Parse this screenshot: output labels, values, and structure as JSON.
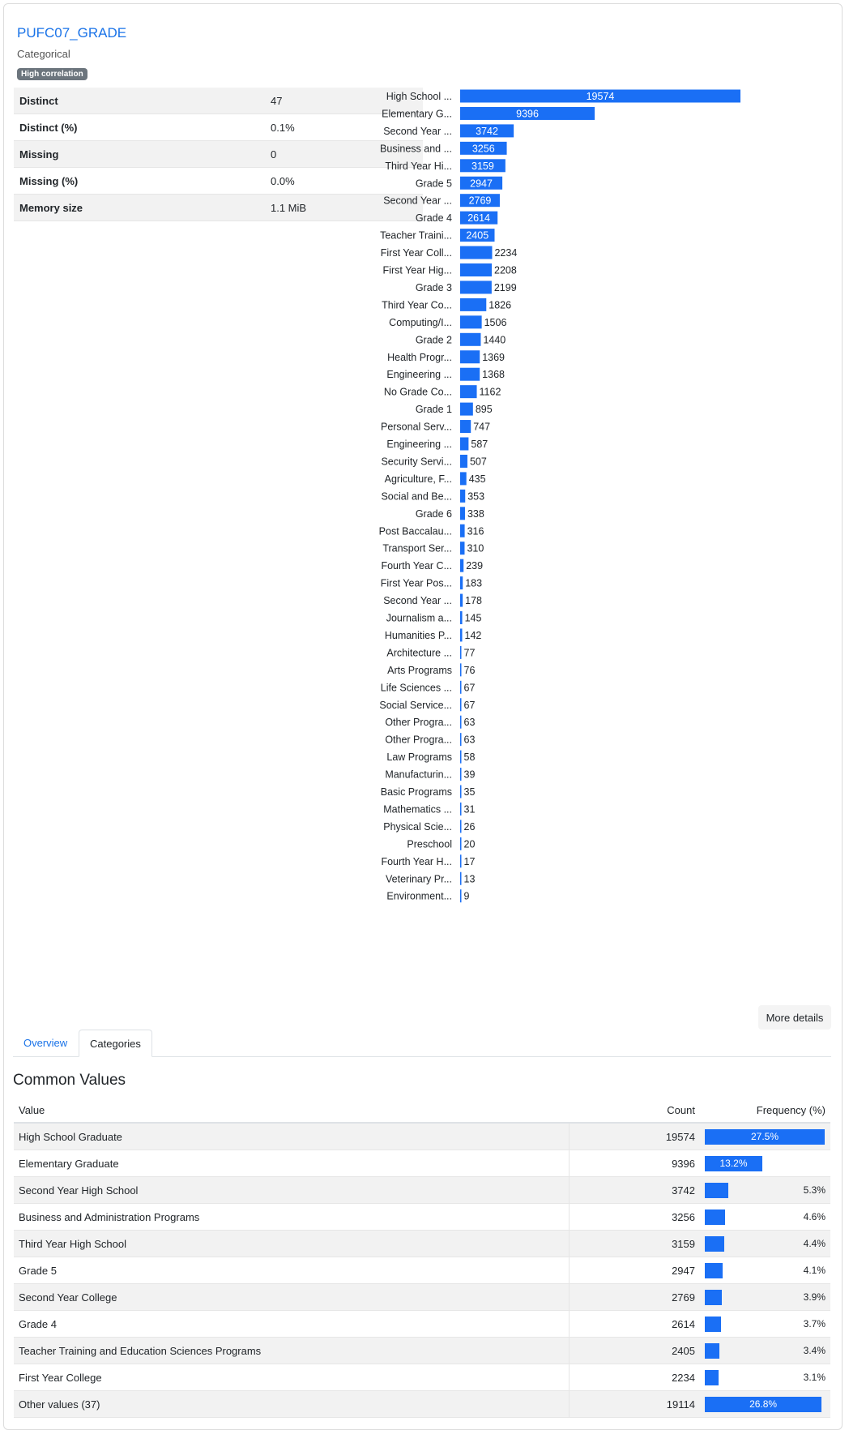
{
  "variable": {
    "name": "PUFC07_GRADE",
    "type": "Categorical",
    "badge": "High correlation"
  },
  "stats": [
    {
      "label": "Distinct",
      "value": "47"
    },
    {
      "label": "Distinct (%)",
      "value": "0.1%"
    },
    {
      "label": "Missing",
      "value": "0"
    },
    {
      "label": "Missing (%)",
      "value": "0.0%"
    },
    {
      "label": "Memory size",
      "value": "1.1 MiB"
    }
  ],
  "colors": {
    "bar": "#1a6ff5",
    "accent": "#1a73e8"
  },
  "chart_data": {
    "type": "bar",
    "orientation": "horizontal",
    "categories": [
      "High School ...",
      "Elementary G...",
      "Second Year ...",
      "Business and ...",
      "Third Year Hi...",
      "Grade 5",
      "Second Year ...",
      "Grade 4",
      "Teacher Traini...",
      "First Year Coll...",
      "First Year Hig...",
      "Grade 3",
      "Third Year Co...",
      "Computing/I...",
      "Grade 2",
      "Health Progr...",
      "Engineering ...",
      "No Grade Co...",
      "Grade 1",
      "Personal Serv...",
      "Engineering ...",
      "Security Servi...",
      "Agriculture, F...",
      "Social and Be...",
      "Grade 6",
      "Post Baccalau...",
      "Transport Ser...",
      "Fourth Year C...",
      "First Year Pos...",
      "Second Year ...",
      "Journalism a...",
      "Humanities P...",
      "Architecture ...",
      "Arts Programs",
      "Life Sciences ...",
      "Social Service...",
      "Other Progra...",
      "Other Progra...",
      "Law Programs",
      "Manufacturin...",
      "Basic Programs",
      "Mathematics ...",
      "Physical Scie...",
      "Preschool",
      "Fourth Year H...",
      "Veterinary Pr...",
      "Environment..."
    ],
    "values": [
      19574,
      9396,
      3742,
      3256,
      3159,
      2947,
      2769,
      2614,
      2405,
      2234,
      2208,
      2199,
      1826,
      1506,
      1440,
      1369,
      1368,
      1162,
      895,
      747,
      587,
      507,
      435,
      353,
      338,
      316,
      310,
      239,
      183,
      178,
      145,
      142,
      77,
      76,
      67,
      67,
      63,
      63,
      58,
      39,
      35,
      31,
      26,
      20,
      17,
      13,
      9
    ],
    "xlim": [
      0,
      19574
    ]
  },
  "more_details_label": "More details",
  "tabs": [
    {
      "label": "Overview"
    },
    {
      "label": "Categories"
    }
  ],
  "common_values": {
    "title": "Common Values",
    "headers": {
      "value": "Value",
      "count": "Count",
      "frequency": "Frequency (%)"
    },
    "rows": [
      {
        "value": "High School Graduate",
        "count": "19574",
        "freq": "27.5%",
        "pct": 27.5
      },
      {
        "value": "Elementary Graduate",
        "count": "9396",
        "freq": "13.2%",
        "pct": 13.2
      },
      {
        "value": "Second Year High School",
        "count": "3742",
        "freq": "5.3%",
        "pct": 5.3
      },
      {
        "value": "Business and Administration Programs",
        "count": "3256",
        "freq": "4.6%",
        "pct": 4.6
      },
      {
        "value": "Third Year High School",
        "count": "3159",
        "freq": "4.4%",
        "pct": 4.4
      },
      {
        "value": "Grade 5",
        "count": "2947",
        "freq": "4.1%",
        "pct": 4.1
      },
      {
        "value": "Second Year College",
        "count": "2769",
        "freq": "3.9%",
        "pct": 3.9
      },
      {
        "value": "Grade 4",
        "count": "2614",
        "freq": "3.7%",
        "pct": 3.7
      },
      {
        "value": "Teacher Training and Education Sciences Programs",
        "count": "2405",
        "freq": "3.4%",
        "pct": 3.4
      },
      {
        "value": "First Year College",
        "count": "2234",
        "freq": "3.1%",
        "pct": 3.1
      },
      {
        "value": "Other values (37)",
        "count": "19114",
        "freq": "26.8%",
        "pct": 26.8
      }
    ],
    "max_pct": 27.5
  }
}
